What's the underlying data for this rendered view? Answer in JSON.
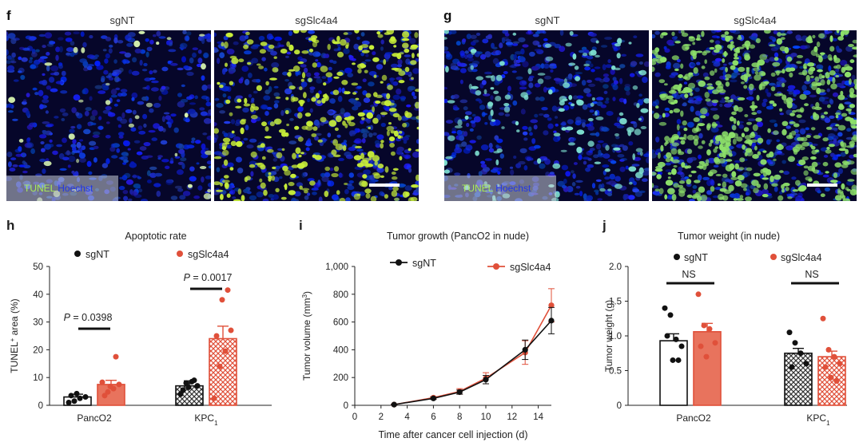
{
  "panels": {
    "f": {
      "letter": "f",
      "cond1": "sgNT",
      "cond2": "sgSlc4a4",
      "stain_green": "TUNEL",
      "stain_blue": "Hoechst"
    },
    "g": {
      "letter": "g",
      "cond1": "sgNT",
      "cond2": "sgSlc4a4",
      "stain_green": "TUNEL",
      "stain_blue": "Hoechst"
    }
  },
  "colors": {
    "sgNT": "#111111",
    "sgSlc4a4": "#e0503a",
    "nuclei_blue": "#1a2fd6",
    "tunel_green": "#b8f06a"
  },
  "chart_data": [
    {
      "letter": "h",
      "type": "bar",
      "title": "Apoptotic rate",
      "ylabel": "TUNEL+ area (%)",
      "ylabel_main": "TUNEL",
      "ylabel_sup": "+",
      "ylabel_rest": " area (%)",
      "ylim": [
        0,
        50
      ],
      "yticks": [
        "0",
        "10",
        "20",
        "30",
        "40",
        "50"
      ],
      "yticks_values": [
        0,
        10,
        20,
        30,
        40,
        50
      ],
      "categories": [
        "PancO2",
        "KPC1"
      ],
      "category_labels": [
        {
          "main": "PancO2",
          "sub": ""
        },
        {
          "main": "KPC",
          "sub": "1"
        }
      ],
      "legend": [
        "sgNT",
        "sgSlc4a4"
      ],
      "series": [
        {
          "name": "sgNT",
          "values": [
            3.0,
            7.0
          ],
          "errors": [
            1.0,
            1.8
          ]
        },
        {
          "name": "sgSlc4a4",
          "values": [
            7.5,
            24.0
          ],
          "errors": [
            1.5,
            4.5
          ]
        }
      ],
      "points": [
        [
          [
            1.0,
            1.5,
            2.5,
            3.0,
            3.5,
            4.2
          ],
          [
            8.3,
            4.8,
            6.0,
            7.5,
            3.5,
            6.8,
            17.5
          ]
        ],
        [
          [
            4.0,
            8.0,
            8.5,
            7.0,
            5.5,
            6.5,
            9.0
          ],
          [
            2.5,
            14.0,
            19.5,
            27.0,
            25.0,
            38.0,
            41.5
          ]
        ]
      ],
      "annotations": [
        "P = 0.0398",
        "P = 0.0017"
      ],
      "annotation_p": [
        "P",
        "P"
      ],
      "annotation_rest": [
        " = 0.0398",
        " = 0.0017"
      ]
    },
    {
      "letter": "i",
      "type": "line",
      "title": "Tumor growth (PancO2 in nude)",
      "xlabel": "Time after cancer cell injection (d)",
      "ylabel": "Tumor volume (mm3)",
      "ylabel_main": "Tumor volume (mm",
      "ylabel_sup": "3",
      "ylabel_rest": ")",
      "ylim": [
        0,
        1000
      ],
      "yticks": [
        "0",
        "200",
        "400",
        "600",
        "800",
        "1,000"
      ],
      "yticks_values": [
        0,
        200,
        400,
        600,
        800,
        1000
      ],
      "xlim": [
        0,
        15
      ],
      "xticks": [
        "0",
        "2",
        "4",
        "6",
        "8",
        "10",
        "12",
        "14"
      ],
      "xticks_values": [
        0,
        2,
        4,
        6,
        8,
        10,
        12,
        14
      ],
      "x": [
        3,
        6,
        8,
        10,
        13,
        15
      ],
      "legend": [
        "sgNT",
        "sgSlc4a4"
      ],
      "series": [
        {
          "name": "sgNT",
          "values": [
            5,
            50,
            95,
            185,
            400,
            610
          ],
          "errors": [
            3,
            8,
            15,
            30,
            70,
            95
          ]
        },
        {
          "name": "sgSlc4a4",
          "values": [
            5,
            55,
            100,
            195,
            380,
            720
          ],
          "errors": [
            3,
            8,
            20,
            40,
            85,
            120
          ]
        }
      ]
    },
    {
      "letter": "j",
      "type": "bar",
      "title": "Tumor weight (in nude)",
      "ylabel": "Tumor weight (g)",
      "ylim": [
        0,
        2.0
      ],
      "yticks": [
        "0",
        "0.5",
        "1.0",
        "1.5",
        "2.0"
      ],
      "yticks_values": [
        0,
        0.5,
        1.0,
        1.5,
        2.0
      ],
      "categories": [
        "PancO2",
        "KPC1"
      ],
      "category_labels": [
        {
          "main": "PancO2",
          "sub": ""
        },
        {
          "main": "KPC",
          "sub": "1"
        }
      ],
      "legend": [
        "sgNT",
        "sgSlc4a4"
      ],
      "series": [
        {
          "name": "sgNT",
          "values": [
            0.93,
            0.75
          ],
          "errors": [
            0.1,
            0.07
          ]
        },
        {
          "name": "sgSlc4a4",
          "values": [
            1.06,
            0.7
          ],
          "errors": [
            0.12,
            0.08
          ]
        }
      ],
      "points": [
        [
          [
            1.4,
            1.3,
            0.95,
            0.85,
            1.0,
            0.65,
            0.65
          ],
          [
            1.6,
            1.15,
            1.1,
            0.9,
            0.85,
            0.7
          ]
        ],
        [
          [
            1.05,
            0.9,
            0.75,
            0.6,
            0.55
          ],
          [
            1.25,
            0.8,
            0.7,
            0.6,
            0.55,
            0.4,
            0.35
          ]
        ]
      ],
      "annotations": [
        "NS",
        "NS"
      ]
    }
  ]
}
